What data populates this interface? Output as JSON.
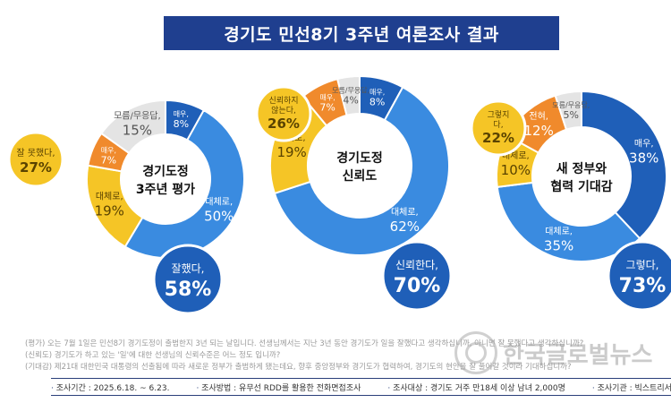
{
  "header": {
    "title": "경기도 민선8기 3주년 여론조사 결과"
  },
  "colors": {
    "dark_blue": "#1f5fb8",
    "mid_blue": "#3a8be0",
    "yellow": "#f5c526",
    "orange": "#f08a2c",
    "gray": "#e4e4e4",
    "navy": "#1f3f8f"
  },
  "chart_data": [
    {
      "type": "pie",
      "title": "경기도정 3주년 평가",
      "slices": [
        {
          "name": "매우,",
          "value": 8,
          "display": "8%",
          "color": "#1f5fb8"
        },
        {
          "name": "대체로,",
          "value": 50,
          "display": "50%",
          "color": "#3a8be0"
        },
        {
          "name": "대체로,",
          "value": 19,
          "display": "19%",
          "color": "#f5c526"
        },
        {
          "name": "매우,",
          "value": 7,
          "display": "7%",
          "color": "#f08a2c"
        },
        {
          "name": "모름/무응답,",
          "value": 15,
          "display": "15%",
          "color": "#e4e4e4"
        }
      ],
      "callouts": [
        {
          "label": "잘했다,",
          "value": "58%",
          "color": "#1f5fb8"
        },
        {
          "label": "잘 못했다,",
          "value": "27%",
          "color": "#f5c526"
        }
      ]
    },
    {
      "type": "pie",
      "title": "경기도정 신뢰도",
      "slices": [
        {
          "name": "매우,",
          "value": 8,
          "display": "8%",
          "color": "#1f5fb8"
        },
        {
          "name": "대체로,",
          "value": 62,
          "display": "62%",
          "color": "#3a8be0"
        },
        {
          "name": "대체로,",
          "value": 19,
          "display": "19%",
          "color": "#f5c526"
        },
        {
          "name": "매우,",
          "value": 7,
          "display": "7%",
          "color": "#f08a2c"
        },
        {
          "name": "모름/무응답,",
          "value": 4,
          "display": "4%",
          "color": "#e4e4e4"
        }
      ],
      "callouts": [
        {
          "label": "신뢰한다,",
          "value": "70%",
          "color": "#1f5fb8"
        },
        {
          "label": "신뢰하지 않는다,",
          "value": "26%",
          "color": "#f5c526"
        }
      ]
    },
    {
      "type": "pie",
      "title": "새 정부와 협력 기대감",
      "slices": [
        {
          "name": "매우,",
          "value": 38,
          "display": "38%",
          "color": "#1f5fb8"
        },
        {
          "name": "대체로,",
          "value": 35,
          "display": "35%",
          "color": "#3a8be0"
        },
        {
          "name": "대체로,",
          "value": 10,
          "display": "10%",
          "color": "#f5c526"
        },
        {
          "name": "전혀,",
          "value": 12,
          "display": "12%",
          "color": "#f08a2c"
        },
        {
          "name": "모름/무응답,",
          "value": 5,
          "display": "5%",
          "color": "#e4e4e4"
        }
      ],
      "callouts": [
        {
          "label": "그렇다,",
          "value": "73%",
          "color": "#1f5fb8"
        },
        {
          "label": "그렇지 않다,",
          "value": "22%",
          "color": "#f5c526"
        }
      ]
    }
  ],
  "notes": [
    "(평가) 오는 7월 1일은 민선8기 경기도정이 출범한지 3년 되는 날입니다. 선생님께서는 지난 3년 동안 경기도가 일을 잘했다고 생각하십니까, 아니면 잘 못했다고 생각하십니까?",
    "(신뢰도) 경기도가 하고 있는 '일'에 대한 선생님의 신뢰수준은 어느 정도 입니까?",
    "(기대감) 제21대 대한민국 대통령의 선출됨에 따라 새로운 정부가 출범하게 됐는데요, 향후 중앙정부와 경기도가 협력하여, 경기도의 현안을 잘 풀어갈 것이라 기대하십니까?"
  ],
  "footer": {
    "period": "조사기간 : 2025.6.18. ~ 6.23.",
    "method": "조사방법 : 유무선 RDD를 활용한 전화면접조사",
    "target": "조사대상 : 경기도 거주 만18세 이상 남녀 2,000명",
    "agency": "조사기관 : 빅스트리서치㈜"
  },
  "watermark": {
    "text": "한국글로벌뉴스"
  }
}
